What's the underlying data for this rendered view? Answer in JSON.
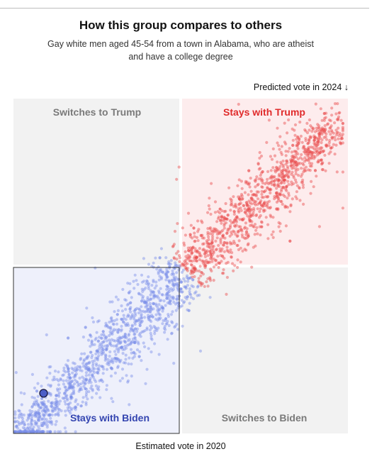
{
  "header": {
    "title": "How this group compares to others",
    "subtitle": "Gay white men aged 45-54 from a town in Alabama, who are atheist and have a college degree"
  },
  "chart_data": {
    "type": "scatter",
    "xlabel": "Estimated vote in 2020",
    "ylabel": "Predicted vote in 2024 ↓",
    "xlim": [
      0,
      1
    ],
    "ylim": [
      0,
      1
    ],
    "quadrants": {
      "top_left": "Switches to Trump",
      "top_right": "Stays with Trump",
      "bottom_left": "Stays with Biden",
      "bottom_right": "Switches to Biden"
    },
    "highlight_point": {
      "x": 0.09,
      "y": 0.12
    },
    "colors": {
      "biden": "#7b8ee8",
      "trump": "#e84b4b",
      "biden_quadrant_bg": "#eef0fb",
      "trump_quadrant_bg": "#fdeced",
      "neutral_quadrant_bg": "#f2f2f2",
      "highlight": "#4c5fc7"
    }
  }
}
